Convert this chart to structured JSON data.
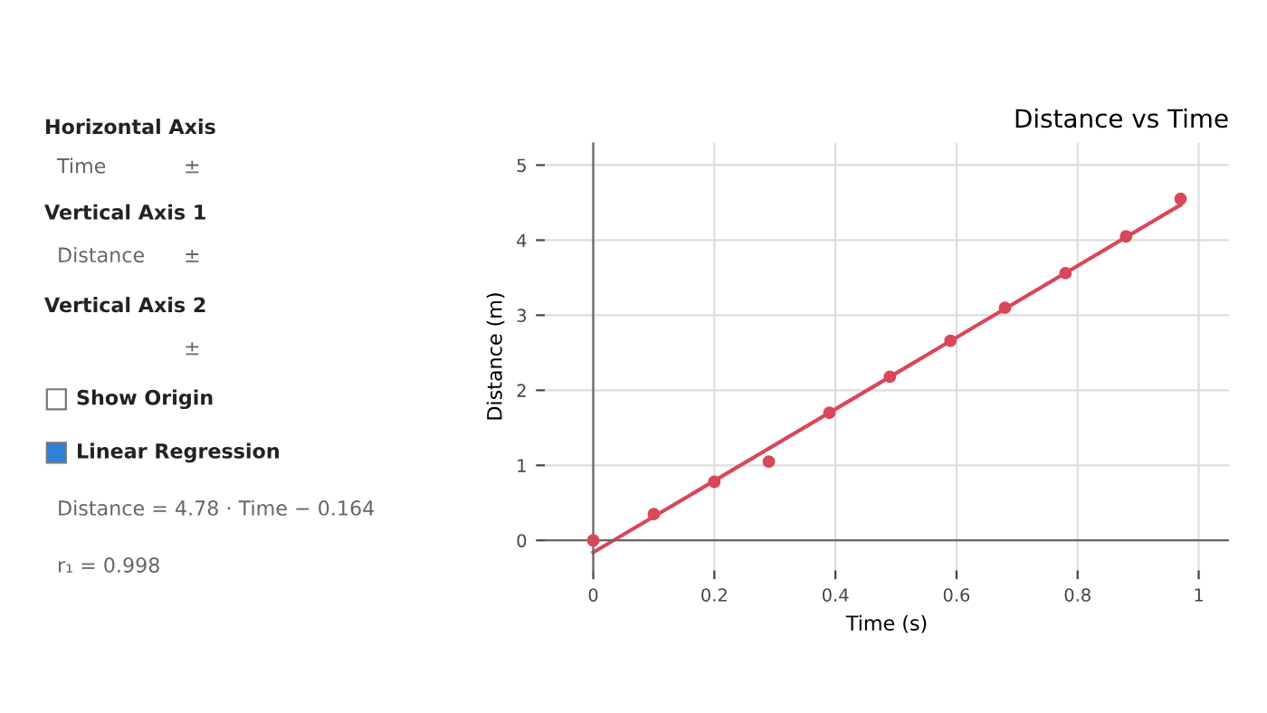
{
  "chart_data": {
    "type": "scatter",
    "title": "Distance vs Time",
    "xlabel": "Time (s)",
    "ylabel": "Distance (m)",
    "series": [
      {
        "color": "#d9475a",
        "x": [
          0,
          0.1,
          0.2,
          0.29,
          0.39,
          0.49,
          0.59,
          0.68,
          0.78,
          0.88,
          0.97
        ],
        "values": [
          0.0,
          0.35,
          0.78,
          1.05,
          1.7,
          2.18,
          2.66,
          3.1,
          3.56,
          4.05,
          4.55
        ],
        "marker": "circle"
      },
      {
        "type": "line",
        "color": "#d9475a",
        "x": [
          0.0,
          0.97
        ],
        "values": [
          -0.16,
          4.47
        ],
        "marker": "none",
        "line_style": "solid"
      }
    ],
    "xlim": [
      -0.08,
      1.05
    ],
    "ylim": [
      -0.4,
      5.3
    ],
    "xticks": [
      0,
      0.2,
      0.4,
      0.6,
      0.8,
      1
    ],
    "yticks": [
      0,
      1,
      2,
      3,
      4,
      5
    ],
    "grid": true,
    "legend": false,
    "annotations": [
      "Horizontal Axis",
      "Time",
      "±",
      "Vertical Axis 1",
      "Distance",
      "±",
      "Vertical Axis 2",
      "±",
      "Show Origin",
      "Linear Regression",
      "Distance = 4.78 · Time − 0.164",
      "r₁ = 0.998"
    ]
  }
}
